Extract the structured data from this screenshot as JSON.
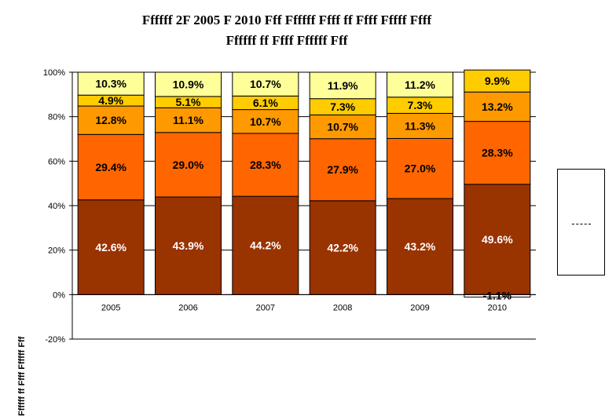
{
  "title_lines": [
    "Ffffff 2F 2005 F 2010 Fff Ffffff Ffff ff Ffff Fffff Ffff",
    "Ffffff ff Ffff Ffffff Fff"
  ],
  "colors": {
    "s1": "#993300",
    "s2": "#FF6600",
    "s3": "#FF9900",
    "s4": "#FFCC00",
    "s5": "#FFFF99",
    "negative": "#FFFFFF"
  },
  "chart_data": {
    "type": "bar",
    "stacked": true,
    "categories": [
      "2005",
      "2006",
      "2007",
      "2008",
      "2009",
      "2010"
    ],
    "series": [
      {
        "values": [
          42.6,
          43.9,
          44.2,
          42.2,
          43.2,
          49.6
        ]
      },
      {
        "values": [
          29.4,
          29.0,
          28.3,
          27.9,
          27.0,
          28.3
        ]
      },
      {
        "values": [
          12.8,
          11.1,
          10.7,
          10.7,
          11.3,
          13.2
        ]
      },
      {
        "values": [
          4.9,
          5.1,
          6.1,
          7.3,
          7.3,
          9.9
        ]
      },
      {
        "values": [
          10.3,
          10.9,
          10.7,
          11.9,
          11.2,
          0
        ]
      }
    ],
    "negative": [
      0,
      0,
      0,
      0,
      0,
      -1.1
    ],
    "data_labels": [
      [
        "42.6%",
        "29.4%",
        "12.8%",
        "4.9%",
        "10.3%"
      ],
      [
        "43.9%",
        "29.0%",
        "11.1%",
        "5.1%",
        "10.9%"
      ],
      [
        "44.2%",
        "28.3%",
        "10.7%",
        "6.1%",
        "10.7%"
      ],
      [
        "42.2%",
        "27.9%",
        "10.7%",
        "7.3%",
        "11.9%"
      ],
      [
        "43.2%",
        "27.0%",
        "11.3%",
        "7.3%",
        "11.2%"
      ],
      [
        "49.6%",
        "28.3%",
        "13.2%",
        "9.9%",
        "-1.1%"
      ]
    ],
    "title": "",
    "xlabel": "",
    "ylabel": "Ffffff ff Ffff Ffffff Fff",
    "ylim": [
      -20,
      100
    ],
    "yticks": [
      -20,
      0,
      20,
      40,
      60,
      80,
      100
    ],
    "ytick_labels": [
      "-20%",
      "0%",
      "20%",
      "40%",
      "60%",
      "80%",
      "100%"
    ],
    "grid": true,
    "legend_position": "right"
  }
}
